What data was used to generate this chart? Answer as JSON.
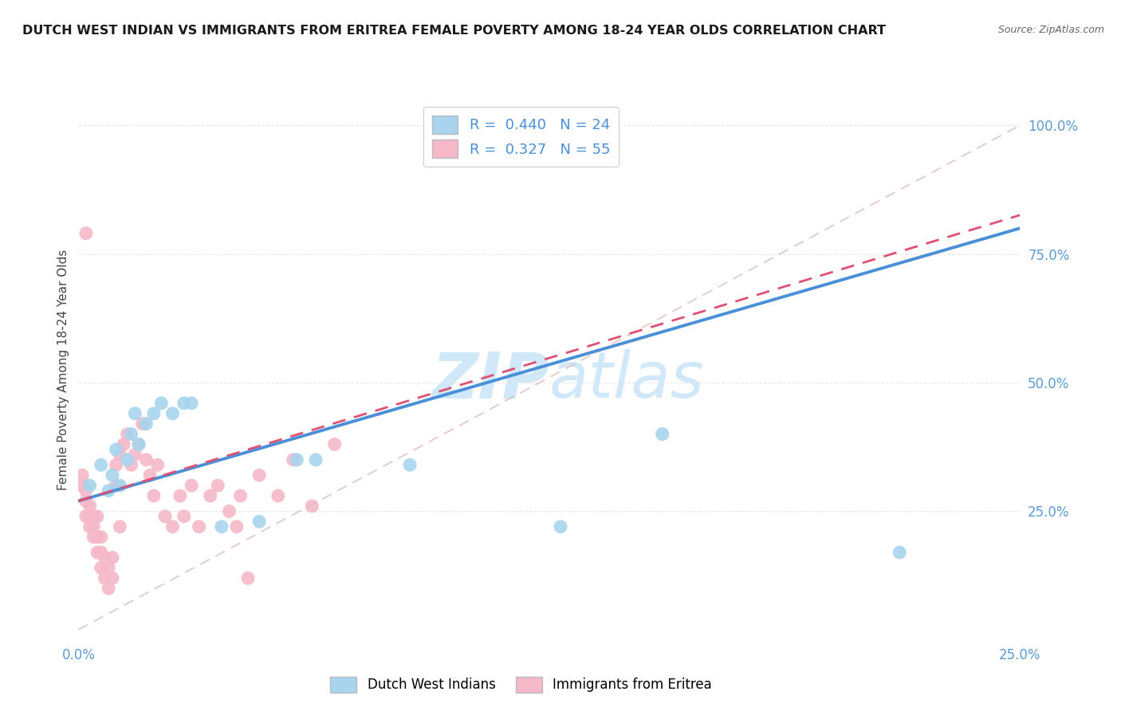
{
  "title": "DUTCH WEST INDIAN VS IMMIGRANTS FROM ERITREA FEMALE POVERTY AMONG 18-24 YEAR OLDS CORRELATION CHART",
  "source": "Source: ZipAtlas.com",
  "ylabel": "Female Poverty Among 18-24 Year Olds",
  "xlim": [
    0.0,
    0.25
  ],
  "ylim": [
    0.0,
    1.05
  ],
  "yticks": [
    0.0,
    0.25,
    0.5,
    0.75,
    1.0
  ],
  "ytick_labels": [
    "",
    "25.0%",
    "50.0%",
    "75.0%",
    "100.0%"
  ],
  "xticks": [
    0.0,
    0.025,
    0.05,
    0.075,
    0.1,
    0.125,
    0.15,
    0.175,
    0.2,
    0.225,
    0.25
  ],
  "xtick_labels": [
    "0.0%",
    "",
    "",
    "",
    "",
    "",
    "",
    "",
    "",
    "",
    "25.0%"
  ],
  "blue_R": 0.44,
  "blue_N": 24,
  "pink_R": 0.327,
  "pink_N": 55,
  "blue_color": "#A8D4EE",
  "pink_color": "#F5B8C8",
  "blue_line_color": "#4A90D9",
  "pink_line_color": "#E05070",
  "diagonal_color": "#DDBBBB",
  "watermark_color": "#D0E8F8",
  "background_color": "#FFFFFF",
  "grid_color": "#E8E8E8",
  "title_fontsize": 11.5,
  "tick_color": "#5B9BD5",
  "blue_points_x": [
    0.003,
    0.006,
    0.008,
    0.009,
    0.01,
    0.011,
    0.013,
    0.014,
    0.015,
    0.016,
    0.018,
    0.02,
    0.022,
    0.025,
    0.028,
    0.03,
    0.038,
    0.048,
    0.058,
    0.063,
    0.088,
    0.128,
    0.155,
    0.218
  ],
  "blue_points_y": [
    0.3,
    0.34,
    0.29,
    0.32,
    0.37,
    0.3,
    0.35,
    0.4,
    0.44,
    0.38,
    0.42,
    0.44,
    0.46,
    0.44,
    0.46,
    0.46,
    0.22,
    0.23,
    0.35,
    0.35,
    0.34,
    0.22,
    0.4,
    0.17
  ],
  "pink_points_x": [
    0.001,
    0.001,
    0.002,
    0.002,
    0.002,
    0.003,
    0.003,
    0.003,
    0.004,
    0.004,
    0.004,
    0.005,
    0.005,
    0.005,
    0.006,
    0.006,
    0.006,
    0.007,
    0.007,
    0.008,
    0.008,
    0.009,
    0.009,
    0.01,
    0.01,
    0.011,
    0.011,
    0.012,
    0.013,
    0.014,
    0.015,
    0.016,
    0.017,
    0.018,
    0.019,
    0.02,
    0.021,
    0.023,
    0.025,
    0.027,
    0.028,
    0.03,
    0.032,
    0.035,
    0.037,
    0.04,
    0.042,
    0.043,
    0.045,
    0.048,
    0.053,
    0.057,
    0.062,
    0.068,
    0.002
  ],
  "pink_points_y": [
    0.3,
    0.32,
    0.24,
    0.27,
    0.29,
    0.22,
    0.24,
    0.26,
    0.2,
    0.22,
    0.24,
    0.17,
    0.2,
    0.24,
    0.14,
    0.17,
    0.2,
    0.12,
    0.16,
    0.1,
    0.14,
    0.12,
    0.16,
    0.3,
    0.34,
    0.36,
    0.22,
    0.38,
    0.4,
    0.34,
    0.36,
    0.38,
    0.42,
    0.35,
    0.32,
    0.28,
    0.34,
    0.24,
    0.22,
    0.28,
    0.24,
    0.3,
    0.22,
    0.28,
    0.3,
    0.25,
    0.22,
    0.28,
    0.12,
    0.32,
    0.28,
    0.35,
    0.26,
    0.38,
    0.79
  ]
}
